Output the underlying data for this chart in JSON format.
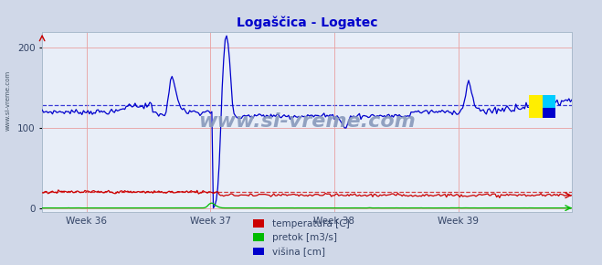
{
  "title": "Logaščica - Logatec",
  "title_color": "#0000cc",
  "bg_color": "#d0d8e8",
  "plot_bg_color": "#e8eef8",
  "grid_color": "#e8a0a0",
  "temp_color": "#cc0000",
  "pretok_color": "#00bb00",
  "visina_color": "#0000cc",
  "avg_visina": 128,
  "avg_temp": 20,
  "watermark": "www.si-vreme.com",
  "watermark_color": "#8899bb",
  "legend_labels": [
    "temperatura [C]",
    "pretok [m3/s]",
    "višina [cm]"
  ],
  "legend_colors": [
    "#cc0000",
    "#00bb00",
    "#0000cc"
  ],
  "ylim_max": 220,
  "yticks": [
    0,
    100,
    200
  ],
  "n_points": 360,
  "week36_idx": 30,
  "week37_idx": 114,
  "week38_idx": 198,
  "week39_idx": 282
}
